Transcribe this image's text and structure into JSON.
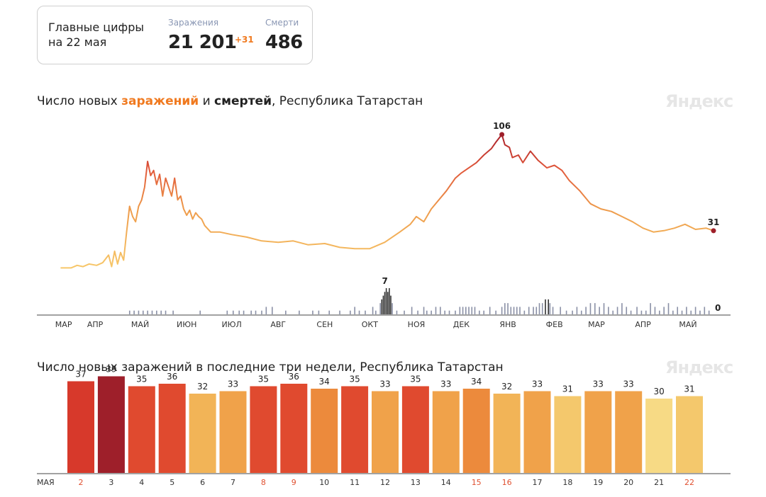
{
  "summary": {
    "title_line1": "Главные цифры",
    "title_line2": "на 22 мая",
    "infections_label": "Заражения",
    "infections_total": "21 201",
    "infections_delta": "+31",
    "deaths_label": "Смерти",
    "deaths_total": "486"
  },
  "chart1": {
    "title_prefix": "Число новых ",
    "title_infections": "заражений",
    "title_middle": " и ",
    "title_deaths": "смертей",
    "title_suffix": ", Республика Татарстан",
    "watermark": "Яндекс"
  },
  "chart2": {
    "title": "Число новых заражений в последние три недели, Республика Татарстан",
    "watermark": "Яндекс"
  },
  "colors": {
    "low": "#f7da85",
    "mid": "#f0a24a",
    "high": "#e04a2f",
    "peak": "#9e1f2a",
    "deaths_bar": "#8a90a6",
    "axis": "#444444",
    "weekend_label": "#e05030"
  },
  "chart_data": [
    {
      "type": "line",
      "title": "",
      "ylabel": "",
      "xlabel": "",
      "x_range": [
        "2020-03-01",
        "2021-05-22"
      ],
      "ylim": [
        0,
        106
      ],
      "x_tick_labels": [
        "МАР",
        "АПР",
        "МАЙ",
        "ИЮН",
        "ИЮЛ",
        "АВГ",
        "СЕН",
        "ОКТ",
        "НОЯ",
        "ДЕК",
        "ЯНВ",
        "ФЕВ",
        "МАР",
        "АПР",
        "МАЙ"
      ],
      "x_tick_dates": [
        "2020-03-15",
        "2020-04-05",
        "2020-05-05",
        "2020-06-05",
        "2020-07-05",
        "2020-08-05",
        "2020-09-05",
        "2020-10-05",
        "2020-11-05",
        "2020-12-05",
        "2021-01-05",
        "2021-02-05",
        "2021-03-05",
        "2021-04-05",
        "2021-05-05"
      ],
      "series": [
        {
          "values": [
            [
              "2020-03-13",
              2
            ],
            [
              "2020-03-20",
              2
            ],
            [
              "2020-03-24",
              4
            ],
            [
              "2020-03-28",
              3
            ],
            [
              "2020-04-01",
              5
            ],
            [
              "2020-04-06",
              4
            ],
            [
              "2020-04-10",
              6
            ],
            [
              "2020-04-14",
              12
            ],
            [
              "2020-04-16",
              3
            ],
            [
              "2020-04-18",
              15
            ],
            [
              "2020-04-20",
              5
            ],
            [
              "2020-04-22",
              14
            ],
            [
              "2020-04-24",
              8
            ],
            [
              "2020-04-26",
              30
            ],
            [
              "2020-04-28",
              50
            ],
            [
              "2020-04-30",
              42
            ],
            [
              "2020-05-02",
              38
            ],
            [
              "2020-05-04",
              50
            ],
            [
              "2020-05-06",
              55
            ],
            [
              "2020-05-08",
              65
            ],
            [
              "2020-05-10",
              85
            ],
            [
              "2020-05-12",
              74
            ],
            [
              "2020-05-14",
              78
            ],
            [
              "2020-05-16",
              67
            ],
            [
              "2020-05-18",
              75
            ],
            [
              "2020-05-20",
              58
            ],
            [
              "2020-05-22",
              72
            ],
            [
              "2020-05-24",
              65
            ],
            [
              "2020-05-26",
              58
            ],
            [
              "2020-05-28",
              72
            ],
            [
              "2020-05-30",
              55
            ],
            [
              "2020-06-01",
              58
            ],
            [
              "2020-06-03",
              48
            ],
            [
              "2020-06-05",
              43
            ],
            [
              "2020-06-07",
              47
            ],
            [
              "2020-06-09",
              40
            ],
            [
              "2020-06-11",
              45
            ],
            [
              "2020-06-13",
              42
            ],
            [
              "2020-06-15",
              40
            ],
            [
              "2020-06-17",
              35
            ],
            [
              "2020-06-21",
              30
            ],
            [
              "2020-06-27",
              30
            ],
            [
              "2020-07-05",
              28
            ],
            [
              "2020-07-15",
              26
            ],
            [
              "2020-07-25",
              23
            ],
            [
              "2020-08-05",
              22
            ],
            [
              "2020-08-15",
              23
            ],
            [
              "2020-08-25",
              20
            ],
            [
              "2020-09-05",
              21
            ],
            [
              "2020-09-15",
              18
            ],
            [
              "2020-09-25",
              17
            ],
            [
              "2020-10-05",
              17
            ],
            [
              "2020-10-15",
              22
            ],
            [
              "2020-10-25",
              30
            ],
            [
              "2020-11-01",
              36
            ],
            [
              "2020-11-05",
              42
            ],
            [
              "2020-11-10",
              38
            ],
            [
              "2020-11-15",
              48
            ],
            [
              "2020-11-20",
              55
            ],
            [
              "2020-11-25",
              62
            ],
            [
              "2020-12-01",
              72
            ],
            [
              "2020-12-05",
              76
            ],
            [
              "2020-12-10",
              80
            ],
            [
              "2020-12-15",
              84
            ],
            [
              "2020-12-20",
              90
            ],
            [
              "2020-12-25",
              95
            ],
            [
              "2020-12-28",
              100
            ],
            [
              "2021-01-01",
              106
            ],
            [
              "2021-01-03",
              98
            ],
            [
              "2021-01-06",
              96
            ],
            [
              "2021-01-08",
              88
            ],
            [
              "2021-01-12",
              90
            ],
            [
              "2021-01-15",
              84
            ],
            [
              "2021-01-20",
              93
            ],
            [
              "2021-01-25",
              86
            ],
            [
              "2021-01-31",
              80
            ],
            [
              "2021-02-05",
              82
            ],
            [
              "2021-02-10",
              78
            ],
            [
              "2021-02-15",
              70
            ],
            [
              "2021-02-22",
              62
            ],
            [
              "2021-03-01",
              52
            ],
            [
              "2021-03-08",
              48
            ],
            [
              "2021-03-15",
              46
            ],
            [
              "2021-03-22",
              42
            ],
            [
              "2021-03-29",
              38
            ],
            [
              "2021-04-05",
              33
            ],
            [
              "2021-04-12",
              30
            ],
            [
              "2021-04-19",
              31
            ],
            [
              "2021-04-26",
              33
            ],
            [
              "2021-05-03",
              36
            ],
            [
              "2021-05-10",
              32
            ],
            [
              "2021-05-17",
              33
            ],
            [
              "2021-05-22",
              31
            ]
          ]
        }
      ],
      "annotations": [
        {
          "x": "2021-01-01",
          "y": 106,
          "label": "106"
        },
        {
          "x": "2021-05-22",
          "y": 31,
          "label": "31"
        }
      ]
    },
    {
      "type": "bar",
      "title": "",
      "ylim": [
        0,
        7
      ],
      "values": [
        [
          "2020-04-28",
          1
        ],
        [
          "2020-05-01",
          1
        ],
        [
          "2020-05-04",
          1
        ],
        [
          "2020-05-07",
          1
        ],
        [
          "2020-05-10",
          1
        ],
        [
          "2020-05-13",
          1
        ],
        [
          "2020-05-16",
          1
        ],
        [
          "2020-05-19",
          1
        ],
        [
          "2020-05-22",
          1
        ],
        [
          "2020-05-27",
          1
        ],
        [
          "2020-06-14",
          1
        ],
        [
          "2020-07-02",
          1
        ],
        [
          "2020-07-06",
          1
        ],
        [
          "2020-07-10",
          1
        ],
        [
          "2020-07-13",
          1
        ],
        [
          "2020-07-18",
          1
        ],
        [
          "2020-07-21",
          1
        ],
        [
          "2020-07-25",
          1
        ],
        [
          "2020-07-28",
          2
        ],
        [
          "2020-08-01",
          2
        ],
        [
          "2020-08-10",
          1
        ],
        [
          "2020-08-19",
          1
        ],
        [
          "2020-08-28",
          1
        ],
        [
          "2020-09-01",
          1
        ],
        [
          "2020-09-08",
          1
        ],
        [
          "2020-09-15",
          1
        ],
        [
          "2020-09-22",
          1
        ],
        [
          "2020-09-25",
          2
        ],
        [
          "2020-09-28",
          1
        ],
        [
          "2020-10-02",
          1
        ],
        [
          "2020-10-07",
          2
        ],
        [
          "2020-10-09",
          1
        ],
        [
          "2020-10-12",
          3
        ],
        [
          "2020-10-13",
          4
        ],
        [
          "2020-10-14",
          5
        ],
        [
          "2020-10-15",
          6
        ],
        [
          "2020-10-16",
          7
        ],
        [
          "2020-10-17",
          6
        ],
        [
          "2020-10-18",
          7
        ],
        [
          "2020-10-19",
          5
        ],
        [
          "2020-10-20",
          3
        ],
        [
          "2020-10-23",
          1
        ],
        [
          "2020-10-28",
          1
        ],
        [
          "2020-11-02",
          2
        ],
        [
          "2020-11-06",
          1
        ],
        [
          "2020-11-10",
          2
        ],
        [
          "2020-11-12",
          1
        ],
        [
          "2020-11-15",
          1
        ],
        [
          "2020-11-18",
          2
        ],
        [
          "2020-11-21",
          2
        ],
        [
          "2020-11-24",
          1
        ],
        [
          "2020-11-27",
          1
        ],
        [
          "2020-12-01",
          1
        ],
        [
          "2020-12-04",
          2
        ],
        [
          "2020-12-06",
          2
        ],
        [
          "2020-12-08",
          2
        ],
        [
          "2020-12-10",
          2
        ],
        [
          "2020-12-12",
          2
        ],
        [
          "2020-12-14",
          2
        ],
        [
          "2020-12-17",
          1
        ],
        [
          "2020-12-20",
          1
        ],
        [
          "2020-12-24",
          2
        ],
        [
          "2020-12-28",
          1
        ],
        [
          "2021-01-01",
          2
        ],
        [
          "2021-01-03",
          3
        ],
        [
          "2021-01-05",
          3
        ],
        [
          "2021-01-07",
          2
        ],
        [
          "2021-01-09",
          2
        ],
        [
          "2021-01-11",
          2
        ],
        [
          "2021-01-13",
          2
        ],
        [
          "2021-01-16",
          1
        ],
        [
          "2021-01-19",
          2
        ],
        [
          "2021-01-22",
          2
        ],
        [
          "2021-01-24",
          2
        ],
        [
          "2021-01-26",
          3
        ],
        [
          "2021-01-28",
          3
        ],
        [
          "2021-01-30",
          4
        ],
        [
          "2021-02-01",
          4
        ],
        [
          "2021-02-02",
          3
        ],
        [
          "2021-02-04",
          2
        ],
        [
          "2021-02-09",
          2
        ],
        [
          "2021-02-13",
          1
        ],
        [
          "2021-02-17",
          1
        ],
        [
          "2021-02-20",
          2
        ],
        [
          "2021-02-23",
          1
        ],
        [
          "2021-02-26",
          2
        ],
        [
          "2021-03-01",
          3
        ],
        [
          "2021-03-04",
          3
        ],
        [
          "2021-03-07",
          2
        ],
        [
          "2021-03-10",
          3
        ],
        [
          "2021-03-13",
          2
        ],
        [
          "2021-03-16",
          1
        ],
        [
          "2021-03-19",
          2
        ],
        [
          "2021-03-22",
          3
        ],
        [
          "2021-03-25",
          2
        ],
        [
          "2021-03-28",
          1
        ],
        [
          "2021-04-01",
          2
        ],
        [
          "2021-04-04",
          1
        ],
        [
          "2021-04-07",
          1
        ],
        [
          "2021-04-10",
          3
        ],
        [
          "2021-04-13",
          2
        ],
        [
          "2021-04-16",
          1
        ],
        [
          "2021-04-19",
          2
        ],
        [
          "2021-04-22",
          3
        ],
        [
          "2021-04-25",
          1
        ],
        [
          "2021-04-28",
          2
        ],
        [
          "2021-05-01",
          1
        ],
        [
          "2021-05-04",
          2
        ],
        [
          "2021-05-07",
          1
        ],
        [
          "2021-05-10",
          2
        ],
        [
          "2021-05-13",
          1
        ],
        [
          "2021-05-16",
          2
        ],
        [
          "2021-05-19",
          1
        ]
      ],
      "annotations": [
        {
          "x": "2020-10-16",
          "y": 7,
          "label": "7"
        },
        {
          "x": "2021-05-22",
          "y": 0,
          "label": "0"
        }
      ]
    },
    {
      "type": "bar",
      "title": "",
      "xlabel": "МАЯ",
      "ylim": [
        0,
        44
      ],
      "categories": [
        "2",
        "3",
        "4",
        "5",
        "6",
        "7",
        "8",
        "9",
        "10",
        "11",
        "12",
        "13",
        "14",
        "15",
        "16",
        "17",
        "18",
        "19",
        "20",
        "21",
        "22"
      ],
      "values": [
        37,
        39,
        35,
        36,
        32,
        33,
        35,
        36,
        34,
        35,
        33,
        35,
        33,
        34,
        32,
        33,
        31,
        33,
        33,
        30,
        31
      ],
      "weekend_categories": [
        "2",
        "8",
        "9",
        "15",
        "16",
        "22"
      ]
    }
  ]
}
